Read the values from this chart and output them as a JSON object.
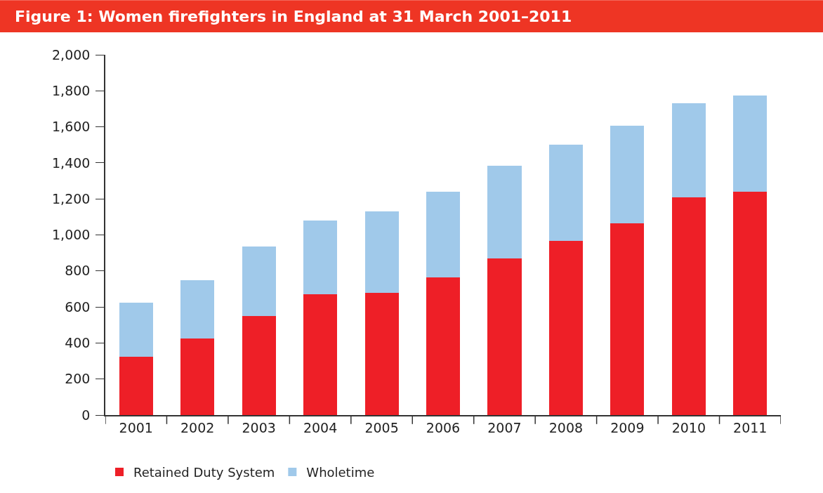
{
  "chart_data": {
    "type": "bar",
    "title": "Figure 1: Women firefighters in England at 31 March 2001–2011",
    "categories": [
      "2001",
      "2002",
      "2003",
      "2004",
      "2005",
      "2006",
      "2007",
      "2008",
      "2009",
      "2010",
      "2011"
    ],
    "series": [
      {
        "name": "Retained Duty System",
        "color": "#ee1f27",
        "values": [
          325,
          425,
          550,
          670,
          680,
          765,
          870,
          965,
          1065,
          1210,
          1240
        ]
      },
      {
        "name": "Wholetime",
        "color": "#a0c9ea",
        "values": [
          300,
          325,
          385,
          410,
          450,
          475,
          515,
          535,
          540,
          520,
          535
        ]
      }
    ],
    "stacked": true,
    "ylim": [
      0,
      2000
    ],
    "yticks": [
      0,
      {
        "value": 200,
        "label": "200"
      },
      {
        "value": 400,
        "label": "400"
      },
      {
        "value": 600,
        "label": "600"
      },
      {
        "value": 800,
        "label": "800"
      },
      {
        "value": 1000,
        "label": "1,000"
      },
      {
        "value": 1200,
        "label": "1,200"
      },
      {
        "value": 1400,
        "label": "1,400"
      },
      {
        "value": 1600,
        "label": "1,600"
      },
      {
        "value": 1800,
        "label": "1,800"
      },
      {
        "value": 2000,
        "label": "2,000"
      }
    ],
    "legend": "bottom left"
  }
}
